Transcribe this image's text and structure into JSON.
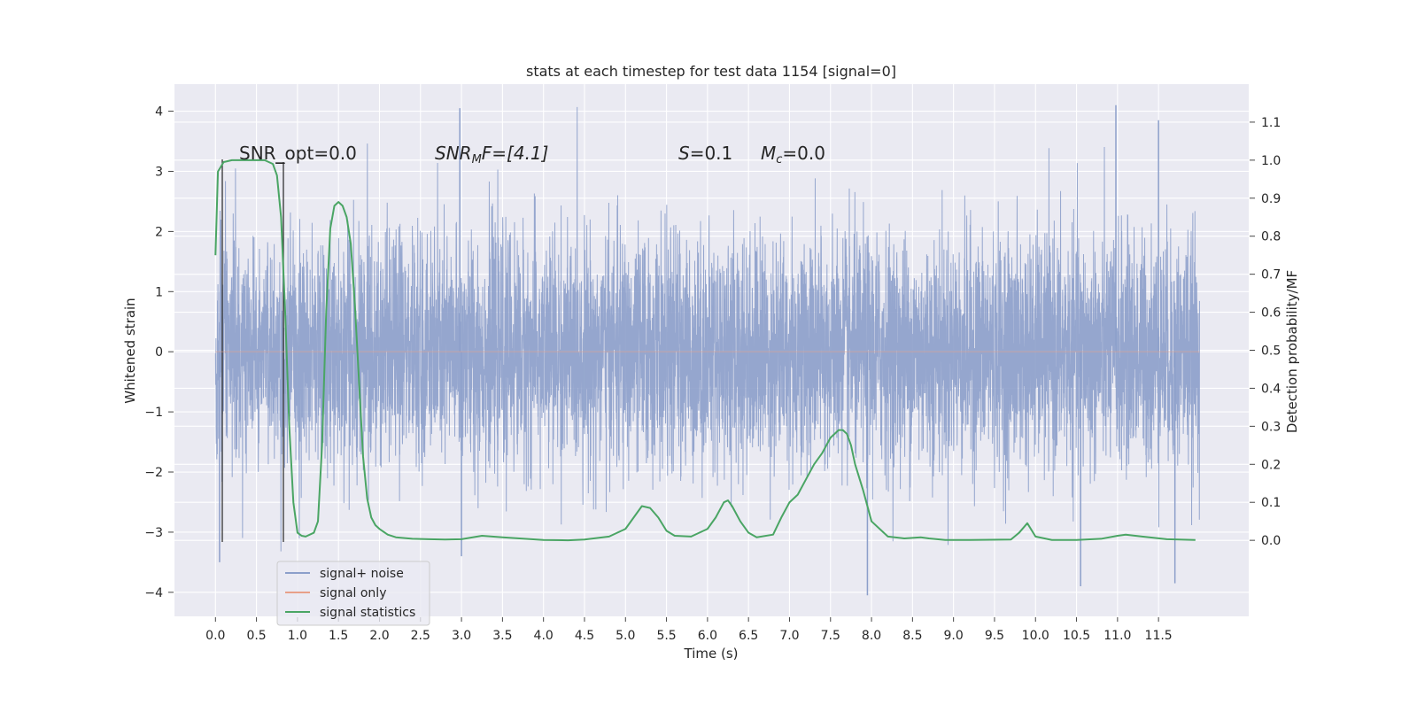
{
  "chart_data": {
    "type": "line",
    "title": "stats at each timestep for test data 1154 [signal=0]",
    "xlabel": "Time (s)",
    "ylabel": "Whitened strain",
    "ylabel_right": "Detection probability/MF",
    "xlim": [
      -0.5,
      12.6
    ],
    "ylim": [
      -4.4,
      4.45
    ],
    "ylim_right": [
      -0.2,
      1.2
    ],
    "grid": true,
    "legend_position": "lower-left",
    "x_ticks": [
      "0.0",
      "0.5",
      "1.0",
      "1.5",
      "2.0",
      "2.5",
      "3.0",
      "3.5",
      "4.0",
      "4.5",
      "5.0",
      "5.5",
      "6.0",
      "6.5",
      "7.0",
      "7.5",
      "8.0",
      "8.5",
      "9.0",
      "9.5",
      "10.0",
      "10.5",
      "11.0",
      "11.5"
    ],
    "y_ticks": [
      "4",
      "3",
      "2",
      "1",
      "0",
      "−1",
      "−2",
      "−3",
      "−4"
    ],
    "y_ticks_right": [
      "1.1",
      "1.0",
      "0.9",
      "0.8",
      "0.7",
      "0.6",
      "0.5",
      "0.4",
      "0.3",
      "0.2",
      "0.1",
      "0.0"
    ],
    "annotations": {
      "snr_opt": "SNR_opt=0.0",
      "snr_mf": "SNR",
      "snr_mf_sub": "M",
      "snr_mf_rest": "F=[4.1]",
      "s": "S",
      "s_rest": "=0.1",
      "mc": "M",
      "mc_sub": "c",
      "mc_rest": "=0.0"
    },
    "series": [
      {
        "name": "signal+ noise",
        "color": "#8c9fca",
        "axis": "left",
        "t_range": [
          0.0,
          12.0
        ],
        "envelope": {
          "max_peak": 4.1,
          "min_trough": -4.05,
          "typical_high": 2.4,
          "typical_low": -2.4,
          "rms": 1.0
        }
      },
      {
        "name": "signal only",
        "color": "#e8a088",
        "axis": "left",
        "x": [
          0.0,
          12.0
        ],
        "y": [
          0.0,
          0.0
        ]
      },
      {
        "name": "signal statistics",
        "color": "#4aa564",
        "axis": "right",
        "x": [
          0.0,
          0.03,
          0.1,
          0.2,
          0.3,
          0.5,
          0.6,
          0.7,
          0.75,
          0.8,
          0.85,
          0.9,
          0.95,
          1.0,
          1.05,
          1.1,
          1.2,
          1.25,
          1.3,
          1.35,
          1.4,
          1.45,
          1.5,
          1.55,
          1.6,
          1.65,
          1.7,
          1.75,
          1.8,
          1.85,
          1.9,
          1.95,
          2.0,
          2.1,
          2.2,
          2.4,
          2.6,
          2.8,
          3.0,
          3.25,
          3.5,
          4.0,
          4.3,
          4.5,
          4.8,
          5.0,
          5.1,
          5.2,
          5.3,
          5.4,
          5.5,
          5.6,
          5.8,
          6.0,
          6.1,
          6.2,
          6.25,
          6.3,
          6.4,
          6.5,
          6.6,
          6.8,
          6.9,
          7.0,
          7.1,
          7.2,
          7.3,
          7.4,
          7.5,
          7.6,
          7.65,
          7.7,
          7.75,
          7.8,
          7.9,
          8.0,
          8.2,
          8.4,
          8.6,
          8.7,
          8.9,
          9.2,
          9.7,
          9.8,
          9.9,
          10.0,
          10.2,
          10.5,
          10.8,
          11.0,
          11.1,
          11.3,
          11.6,
          11.95
        ],
        "y": [
          0.75,
          0.97,
          0.995,
          1.0,
          1.0,
          1.0,
          1.0,
          0.99,
          0.96,
          0.85,
          0.6,
          0.3,
          0.1,
          0.02,
          0.012,
          0.01,
          0.02,
          0.05,
          0.25,
          0.6,
          0.82,
          0.88,
          0.89,
          0.88,
          0.85,
          0.78,
          0.62,
          0.42,
          0.22,
          0.11,
          0.06,
          0.04,
          0.03,
          0.015,
          0.008,
          0.004,
          0.003,
          0.002,
          0.003,
          0.012,
          0.008,
          0.001,
          0.0,
          0.002,
          0.01,
          0.03,
          0.06,
          0.09,
          0.085,
          0.06,
          0.025,
          0.012,
          0.01,
          0.03,
          0.06,
          0.1,
          0.105,
          0.09,
          0.05,
          0.02,
          0.008,
          0.015,
          0.06,
          0.1,
          0.12,
          0.16,
          0.2,
          0.23,
          0.27,
          0.29,
          0.29,
          0.28,
          0.25,
          0.2,
          0.13,
          0.05,
          0.01,
          0.005,
          0.008,
          0.005,
          0.001,
          0.001,
          0.002,
          0.02,
          0.045,
          0.01,
          0.001,
          0.001,
          0.004,
          0.012,
          0.015,
          0.01,
          0.003,
          0.001
        ]
      }
    ]
  }
}
